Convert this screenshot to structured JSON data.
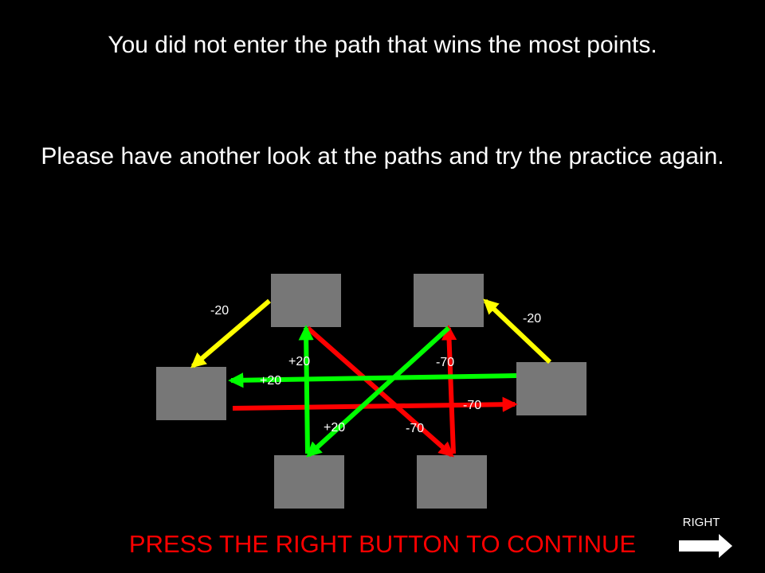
{
  "messages": {
    "result": "You did not enter the path that wins the most points.",
    "instruction": "Please have another look at the paths and try the practice again."
  },
  "paths": [
    {
      "from": "top-left",
      "to": "mid-left",
      "label": "-20",
      "color": "#ffff00"
    },
    {
      "from": "mid-right",
      "to": "top-right",
      "label": "-20",
      "color": "#ffff00"
    },
    {
      "from": "bottom-left",
      "to": "top-left",
      "label": "+20",
      "color": "#00ff00"
    },
    {
      "from": "mid-right",
      "to": "mid-left",
      "label": "+20",
      "color": "#00ff00"
    },
    {
      "from": "top-right",
      "to": "bottom-left",
      "label": "+20",
      "color": "#00ff00"
    },
    {
      "from": "bottom-right",
      "to": "top-right",
      "label": "-70",
      "color": "#ff0000"
    },
    {
      "from": "mid-left",
      "to": "mid-right",
      "label": "-70",
      "color": "#ff0000"
    },
    {
      "from": "top-left",
      "to": "bottom-right",
      "label": "-70",
      "color": "#ff0000"
    }
  ],
  "footer": {
    "continue_prompt": "PRESS THE RIGHT BUTTON TO CONTINUE",
    "button_hint": "RIGHT",
    "button_icon": "right-arrow-icon"
  },
  "colors": {
    "background": "#000000",
    "node": "#777777",
    "prompt": "#ff0000"
  }
}
